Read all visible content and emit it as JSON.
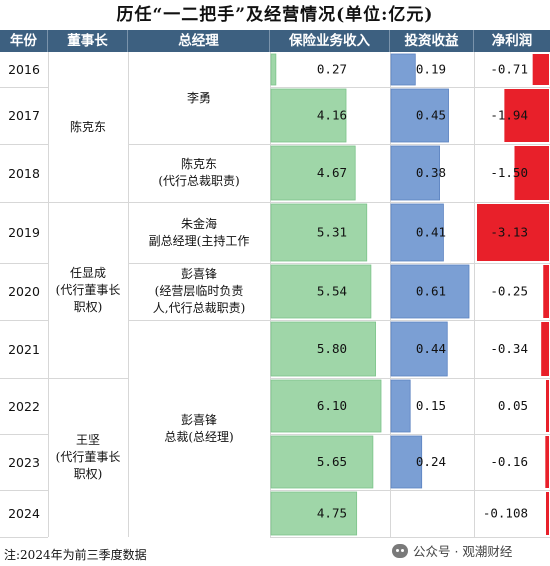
{
  "title": "历任“一二把手”及经营情况(单位:亿元)",
  "headers": [
    "年份",
    "董事长",
    "总经理",
    "保险业务收入",
    "投资收益",
    "净利润"
  ],
  "chairmen": [
    {
      "name": "陈克东",
      "from": 2016,
      "to": 2018
    },
    {
      "name": "任显成\n(代行董事长\n职权)",
      "from": 2019,
      "to": 2021
    },
    {
      "name": "王坚\n(代行董事长\n职权)",
      "from": 2022,
      "to": 2024
    }
  ],
  "managers": [
    {
      "name": "李勇",
      "from": 2016,
      "to": 2017
    },
    {
      "name": "陈克东\n(代行总裁职责)",
      "from": 2018,
      "to": 2018
    },
    {
      "name": "朱金海\n副总经理(主持工作",
      "from": 2019,
      "to": 2019
    },
    {
      "name": "彭喜锋\n(经营层临时负责\n人,代行总裁职责)",
      "from": 2020,
      "to": 2020
    },
    {
      "name": "彭喜锋\n总裁(总经理)",
      "from": 2021,
      "to": 2024
    }
  ],
  "chart_data": {
    "type": "table",
    "columns": [
      "保险业务收入",
      "投资收益",
      "净利润"
    ],
    "years": [
      "2016",
      "2017",
      "2018",
      "2019",
      "2020",
      "2021",
      "2022",
      "2023",
      "2024"
    ],
    "premium_income": [
      0.27,
      4.16,
      4.67,
      5.31,
      5.54,
      5.8,
      6.1,
      5.65,
      4.75
    ],
    "premium_labels": [
      "0.27",
      "4.16",
      "4.67",
      "5.31",
      "5.54",
      "5.80",
      "6.10",
      "5.65",
      "4.75"
    ],
    "investment_income": [
      0.19,
      0.45,
      0.38,
      0.41,
      0.61,
      0.44,
      0.15,
      0.24,
      null
    ],
    "investment_labels": [
      "0.19",
      "0.45",
      "0.38",
      "0.41",
      "0.61",
      "0.44",
      "0.15",
      "0.24",
      ""
    ],
    "net_profit": [
      -0.71,
      -1.94,
      -1.5,
      -3.13,
      -0.25,
      -0.34,
      0.05,
      -0.16,
      -0.108
    ],
    "net_profit_labels": [
      "-0.71",
      "-1.94",
      "-1.50",
      "-3.13",
      "-0.25",
      "-0.34",
      "0.05",
      "-0.16",
      "-0.108"
    ],
    "colors": {
      "premium": "#9fd6a8",
      "investment": "#7b9fd4",
      "profit": "#e8202a"
    }
  },
  "note": "注:2024年为前三季度数据",
  "brand": "公众号 · 观潮财经"
}
